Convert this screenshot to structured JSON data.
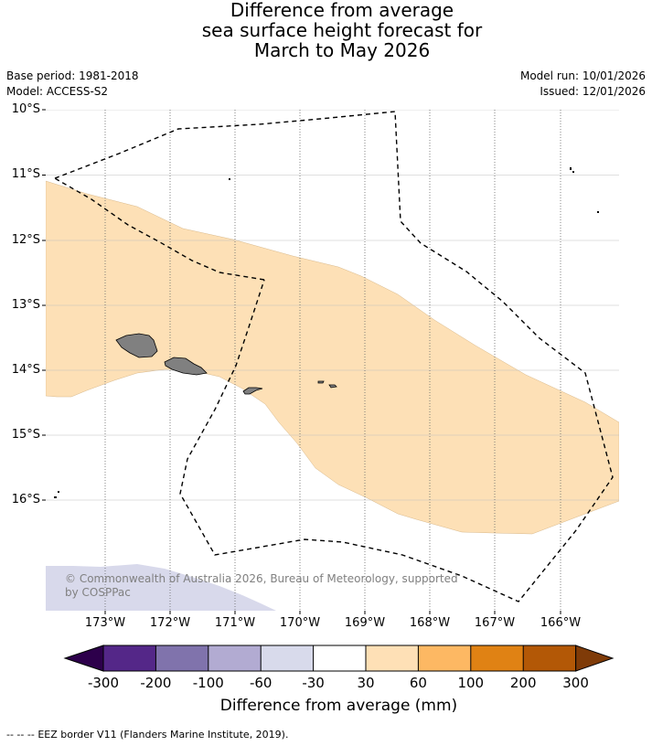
{
  "title": {
    "line1": "Difference from average",
    "line2": "sea surface height forecast for",
    "line3": "March to May 2026"
  },
  "meta": {
    "base_period": "Base period: 1981-2018",
    "model": "Model: ACCESS-S2",
    "model_run": "Model run: 10/01/2026",
    "issued": "Issued: 12/01/2026"
  },
  "map": {
    "extent": {
      "lon_min": -173.9,
      "lon_max": -165.25,
      "lat_min": -17.7,
      "lat_max": -10.0
    },
    "lat_ticks": [
      "10°S",
      "11°S",
      "12°S",
      "13°S",
      "14°S",
      "15°S",
      "16°S"
    ],
    "lon_ticks": [
      "173°W",
      "172°W",
      "171°W",
      "170°W",
      "169°W",
      "168°W",
      "167°W",
      "166°W"
    ],
    "anomaly_regions": [
      {
        "category": "30 to 60 mm",
        "color": "#fde0b6"
      },
      {
        "category": "-100 to -60 mm",
        "color": "#d8d9eb"
      }
    ],
    "land_color": "#808080",
    "copyright": "© Commonwealth of Australia 2026, Bureau of Meteorology, supported by COSPPac"
  },
  "colorbar": {
    "title": "Difference from average (mm)",
    "ticks": [
      "-300",
      "-200",
      "-100",
      "-60",
      "-30",
      "30",
      "60",
      "100",
      "200",
      "300"
    ],
    "under_color": "#2d004b",
    "over_color": "#7f3b08",
    "colors": [
      "#542788",
      "#8073ac",
      "#b2abd2",
      "#d8daeb",
      "#ffffff",
      "#fee0b6",
      "#fdb863",
      "#e08214",
      "#b35806"
    ]
  },
  "legend": {
    "symbol": "-- -- --",
    "label": "EEZ border V11 (Flanders Marine Institute, 2019)."
  }
}
